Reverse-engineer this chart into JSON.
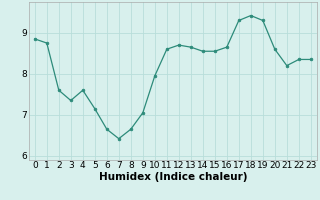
{
  "x": [
    0,
    1,
    2,
    3,
    4,
    5,
    6,
    7,
    8,
    9,
    10,
    11,
    12,
    13,
    14,
    15,
    16,
    17,
    18,
    19,
    20,
    21,
    22,
    23
  ],
  "y": [
    8.85,
    8.75,
    7.6,
    7.35,
    7.6,
    7.15,
    6.65,
    6.42,
    6.65,
    7.05,
    7.95,
    8.6,
    8.7,
    8.65,
    8.55,
    8.55,
    8.65,
    9.3,
    9.42,
    9.3,
    8.6,
    8.2,
    8.35,
    8.35
  ],
  "line_color": "#2d8b7a",
  "marker_color": "#2d8b7a",
  "bg_color": "#d8f0ed",
  "grid_color": "#b8deda",
  "xlabel": "Humidex (Indice chaleur)",
  "xlabel_fontsize": 7.5,
  "ylabel_ticks": [
    6,
    7,
    8,
    9
  ],
  "xtick_labels": [
    "0",
    "1",
    "2",
    "3",
    "4",
    "5",
    "6",
    "7",
    "8",
    "9",
    "10",
    "11",
    "12",
    "13",
    "14",
    "15",
    "16",
    "17",
    "18",
    "19",
    "20",
    "21",
    "22",
    "23"
  ],
  "xlim": [
    -0.5,
    23.5
  ],
  "ylim": [
    5.9,
    9.75
  ],
  "tick_fontsize": 6.5
}
